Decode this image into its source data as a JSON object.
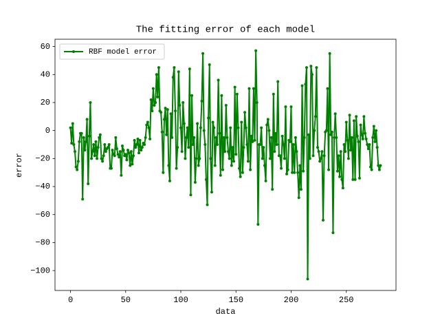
{
  "chart_data": {
    "type": "line",
    "title": "The fitting error of each model",
    "xlabel": "data",
    "ylabel": "error",
    "x": [
      0,
      1,
      2,
      3,
      4,
      5,
      6,
      7,
      8,
      9,
      10,
      11,
      12,
      13,
      14,
      15,
      16,
      17,
      18,
      19,
      20,
      21,
      22,
      23,
      24,
      25,
      26,
      27,
      28,
      29,
      30,
      31,
      32,
      33,
      34,
      35,
      36,
      37,
      38,
      39,
      40,
      41,
      42,
      43,
      44,
      45,
      46,
      47,
      48,
      49,
      50,
      51,
      52,
      53,
      54,
      55,
      56,
      57,
      58,
      59,
      60,
      61,
      62,
      63,
      64,
      65,
      66,
      67,
      68,
      69,
      70,
      71,
      72,
      73,
      74,
      75,
      76,
      77,
      78,
      79,
      80,
      81,
      82,
      83,
      84,
      85,
      86,
      87,
      88,
      89,
      90,
      91,
      92,
      93,
      94,
      95,
      96,
      97,
      98,
      99,
      100,
      101,
      102,
      103,
      104,
      105,
      106,
      107,
      108,
      109,
      110,
      111,
      112,
      113,
      114,
      115,
      116,
      117,
      118,
      119,
      120,
      121,
      122,
      123,
      124,
      125,
      126,
      127,
      128,
      129,
      130,
      131,
      132,
      133,
      134,
      135,
      136,
      137,
      138,
      139,
      140,
      141,
      142,
      143,
      144,
      145,
      146,
      147,
      148,
      149,
      150,
      151,
      152,
      153,
      154,
      155,
      156,
      157,
      158,
      159,
      160,
      161,
      162,
      163,
      164,
      165,
      166,
      167,
      168,
      169,
      170,
      171,
      172,
      173,
      174,
      175,
      176,
      177,
      178,
      179,
      180,
      181,
      182,
      183,
      184,
      185,
      186,
      187,
      188,
      189,
      190,
      191,
      192,
      193,
      194,
      195,
      196,
      197,
      198,
      199,
      200,
      201,
      202,
      203,
      204,
      205,
      206,
      207,
      208,
      209,
      210,
      211,
      212,
      213,
      214,
      215,
      216,
      217,
      218,
      219,
      220,
      221,
      222,
      223,
      224,
      225,
      226,
      227,
      228,
      229,
      230,
      231,
      232,
      233,
      234,
      235,
      236,
      237,
      238,
      239,
      240,
      241,
      242,
      243,
      244,
      245,
      246,
      247,
      248,
      249,
      250,
      251,
      252,
      253,
      254,
      255,
      256,
      257,
      258,
      259,
      260,
      261,
      262,
      263,
      264,
      265,
      266,
      267,
      268,
      269,
      270,
      271,
      272,
      273,
      274,
      275,
      276,
      277,
      278,
      279,
      280,
      281
    ],
    "series": [
      {
        "name": "RBF model error",
        "color": "#008000",
        "values": [
          2,
          -9,
          5,
          -10,
          -15,
          -26,
          -28,
          -22,
          -8,
          -2,
          -2,
          -49,
          -5,
          -14,
          -8,
          8,
          -38,
          -4,
          20,
          -20,
          -15,
          -10,
          -18,
          -8,
          -20,
          -12,
          -5,
          -3,
          -20,
          -22,
          -18,
          -10,
          -15,
          -13,
          -12,
          -10,
          -27,
          -27,
          -14,
          -17,
          -18,
          -5,
          -13,
          -17,
          -19,
          -15,
          -32,
          -11,
          -14,
          -18,
          -17,
          -21,
          -14,
          -16,
          -25,
          -15,
          -24,
          -18,
          -7,
          -12,
          -10,
          -6,
          -16,
          -7,
          -14,
          -12,
          -9,
          -10,
          -5,
          4,
          6,
          2,
          -6,
          22,
          14,
          30,
          18,
          20,
          40,
          24,
          45,
          14,
          13,
          -1,
          -30,
          8,
          16,
          -3,
          15,
          -25,
          -36,
          12,
          -5,
          38,
          45,
          14,
          -27,
          -12,
          42,
          18,
          2,
          -15,
          20,
          5,
          -20,
          -5,
          2,
          -12,
          44,
          -46,
          25,
          -10,
          -5,
          -37,
          -20,
          5,
          -25,
          -20,
          2,
          21,
          55,
          0,
          -10,
          -35,
          -53,
          9,
          47,
          -20,
          -44,
          6,
          2,
          -25,
          -5,
          -10,
          36,
          -2,
          -32,
          25,
          -28,
          -5,
          -15,
          18,
          -5,
          -15,
          -20,
          2,
          -25,
          -12,
          -22,
          31,
          -17,
          26,
          2,
          -27,
          -33,
          6,
          -30,
          -12,
          13,
          2,
          -10,
          -22,
          30,
          -28,
          -4,
          -8,
          30,
          -7,
          57,
          20,
          -67,
          -10,
          -10,
          2,
          -20,
          -12,
          -25,
          -36,
          4,
          8,
          0,
          -20,
          -5,
          -42,
          26,
          -15,
          -2,
          -10,
          35,
          -18,
          -18,
          -27,
          -4,
          -10,
          -20,
          17,
          -31,
          -28,
          -7,
          -8,
          17,
          -30,
          -10,
          -30,
          -5,
          -15,
          -30,
          -48,
          -25,
          -42,
          32,
          -29,
          -5,
          33,
          45,
          -106,
          -3,
          -20,
          46,
          40,
          -18,
          0,
          10,
          45,
          -12,
          -15,
          -22,
          -20,
          -15,
          -64,
          -18,
          -1,
          0,
          30,
          -28,
          55,
          -3,
          -1,
          -73,
          -5,
          12,
          -5,
          -29,
          -18,
          -33,
          -15,
          -35,
          -41,
          -10,
          -15,
          6,
          -7,
          -20,
          11,
          -14,
          -5,
          -35,
          7,
          -35,
          10,
          -4,
          -8,
          -34,
          4,
          -3,
          -6,
          10,
          -2,
          -6,
          -10,
          -13,
          -10,
          -26,
          -28,
          -5,
          3,
          -8,
          0,
          -12,
          -25,
          -28,
          -25
        ]
      }
    ],
    "xlim": [
      -14.05,
      295.05
    ],
    "ylim": [
      -114.2,
      65.2
    ],
    "xticks": [
      0,
      50,
      100,
      150,
      200,
      250
    ],
    "yticks": [
      60,
      40,
      20,
      0,
      {
        "value": -20,
        "label": "−20"
      },
      {
        "value": -40,
        "label": "−40"
      },
      {
        "value": -60,
        "label": "−60"
      },
      {
        "value": -80,
        "label": "−80"
      },
      {
        "value": -100,
        "label": "−100"
      }
    ],
    "legend": "upper left"
  }
}
